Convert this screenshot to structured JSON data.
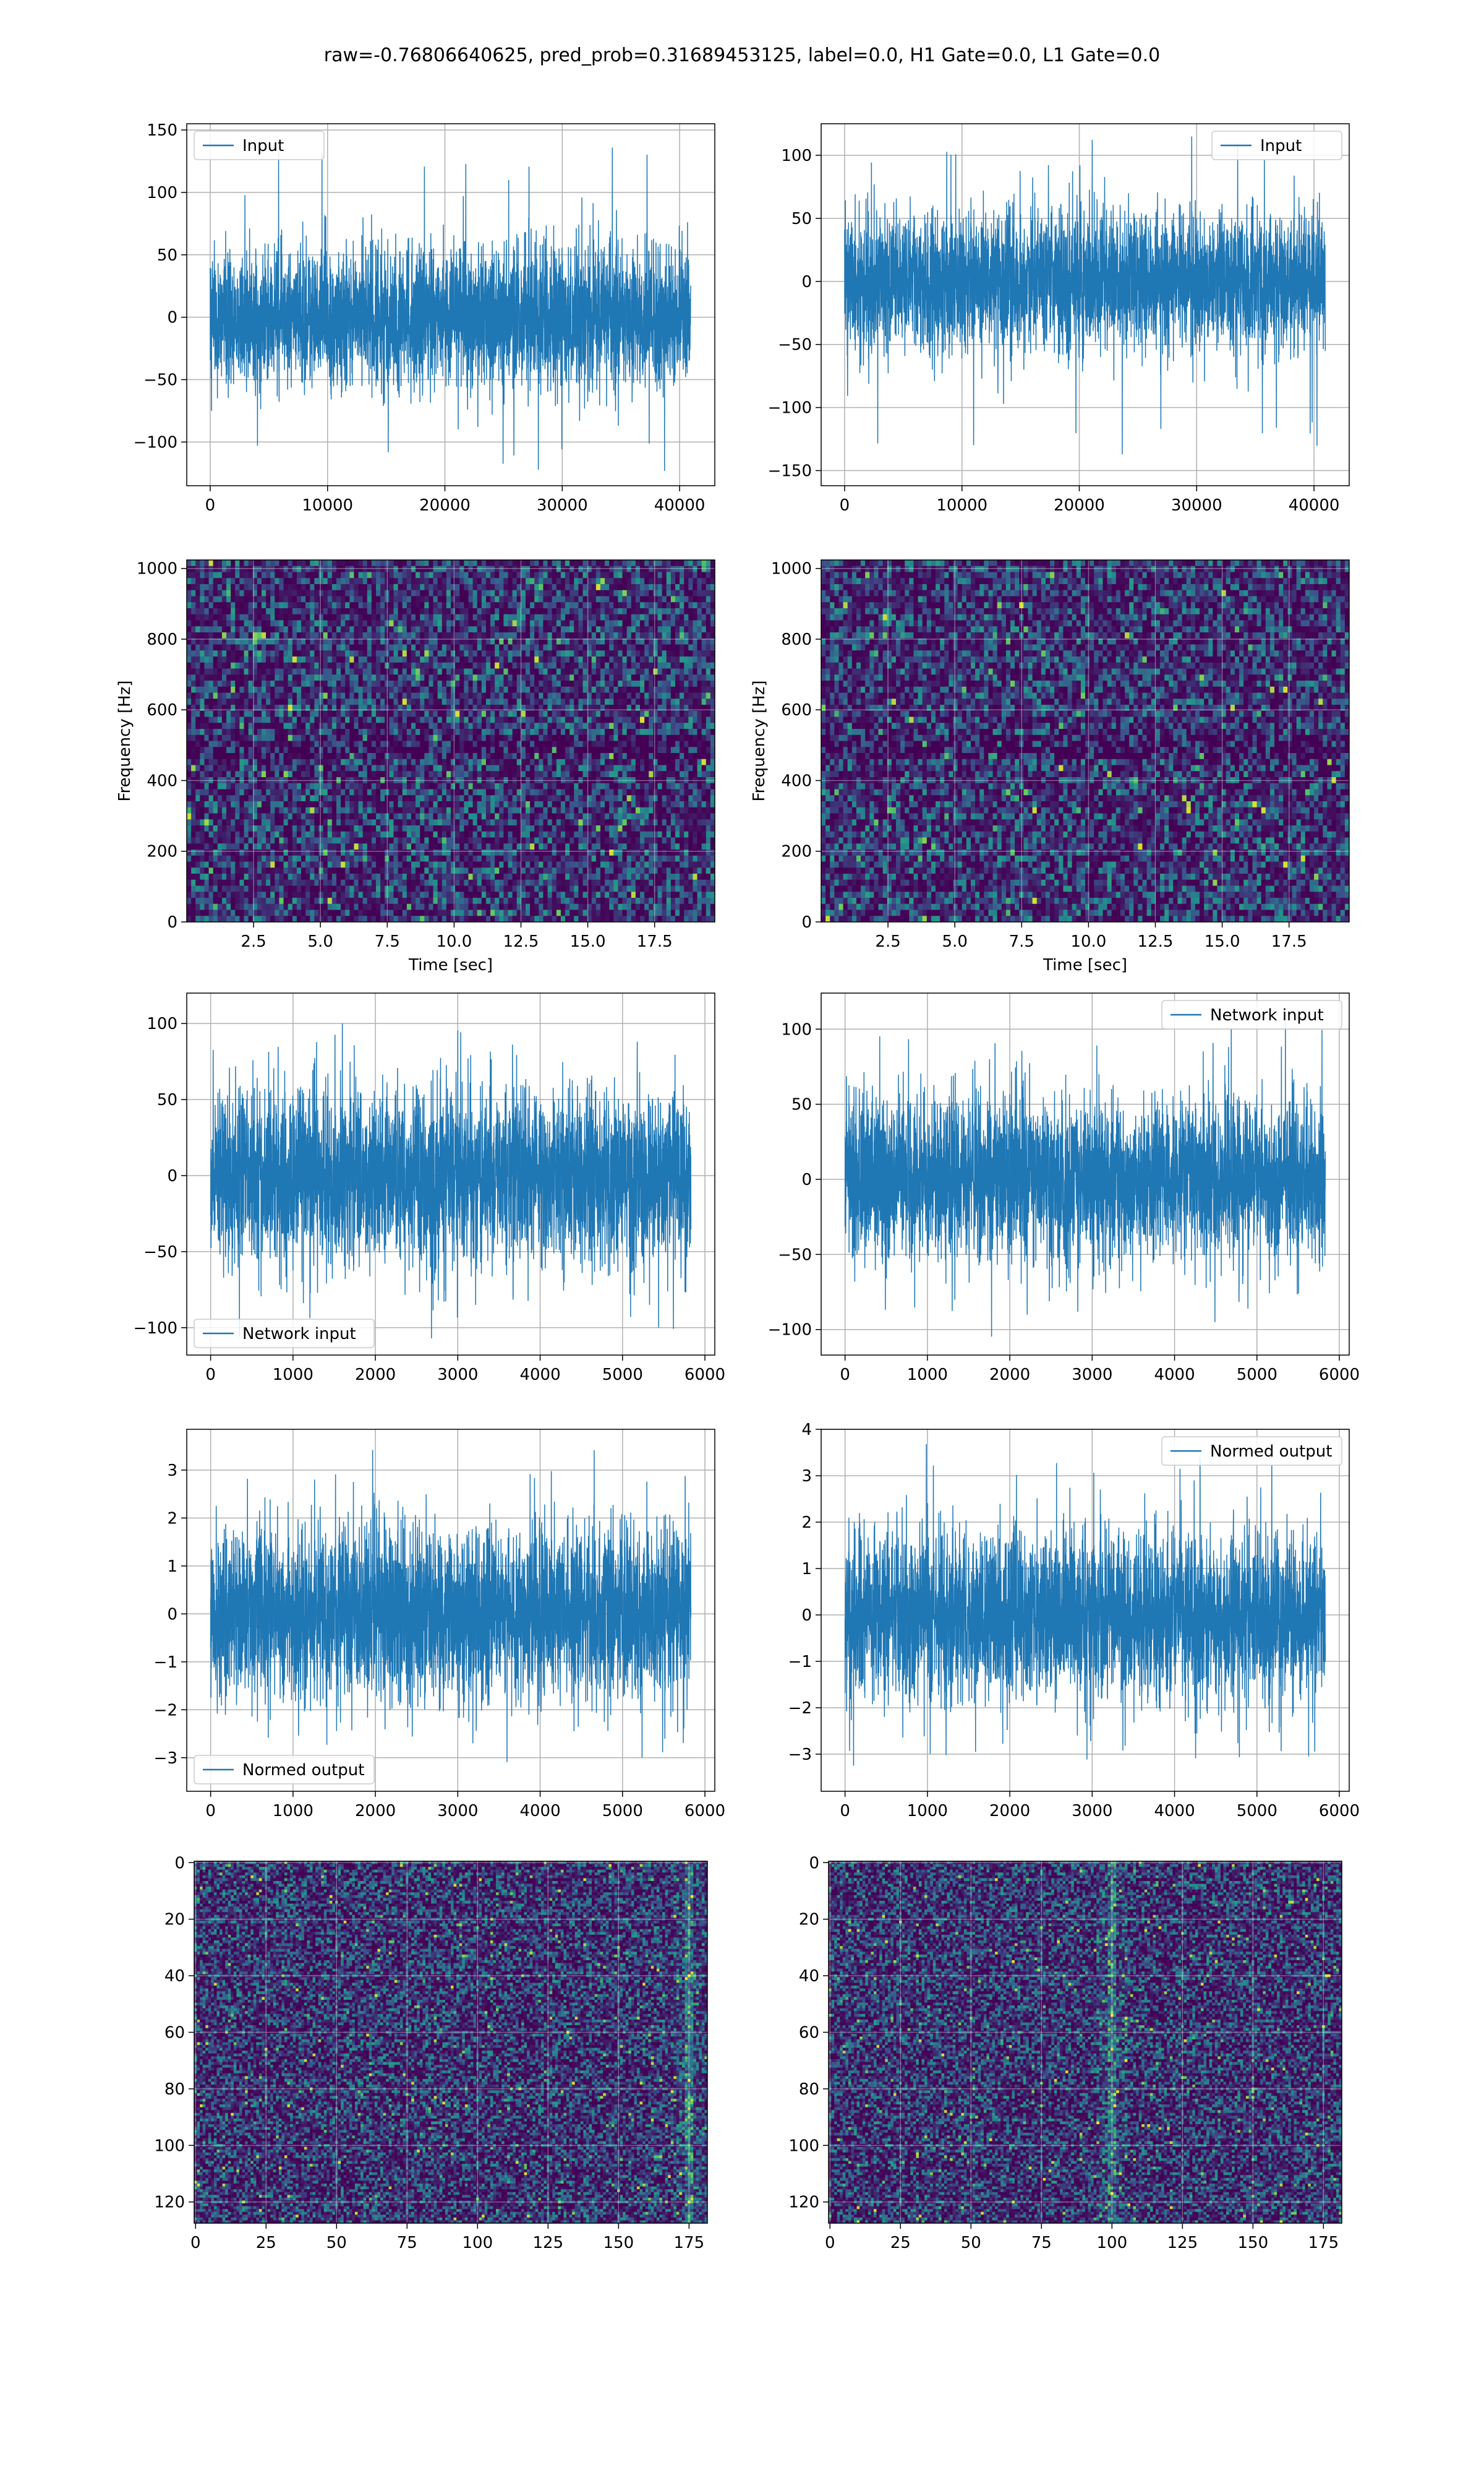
{
  "figure": {
    "title": "raw=-0.76806640625, pred_prob=0.31689453125, label=0.0, H1 Gate=0.0, L1 Gate=0.0"
  },
  "colors": {
    "series": "#1f77b4",
    "grid": "#b0b0b0",
    "viridis_dark": "#440154",
    "viridis_mid": "#3b528b",
    "viridis_teal": "#21918c",
    "viridis_green": "#5ec962",
    "viridis_yellow": "#fde725"
  },
  "chart_data": [
    {
      "id": "input-h1",
      "type": "line",
      "row": 0,
      "col": 0,
      "series": [
        {
          "name": "Input",
          "signal": "noise",
          "x_max": 40960,
          "std": 28,
          "peak_max": 140,
          "peak_min": -130
        }
      ],
      "xlim": [
        -2000,
        43000
      ],
      "ylim": [
        -135,
        155
      ],
      "xticks": [
        0,
        10000,
        20000,
        30000,
        40000
      ],
      "yticks": [
        -100,
        -50,
        0,
        50,
        100,
        150
      ],
      "legend": "upper left",
      "grid": true,
      "xlabel": "",
      "ylabel": ""
    },
    {
      "id": "input-l1",
      "type": "line",
      "row": 0,
      "col": 1,
      "series": [
        {
          "name": "Input",
          "signal": "noise",
          "x_max": 40960,
          "std": 27,
          "peak_max": 120,
          "peak_min": -148
        }
      ],
      "xlim": [
        -2000,
        43000
      ],
      "ylim": [
        -162,
        125
      ],
      "xticks": [
        0,
        10000,
        20000,
        30000,
        40000
      ],
      "yticks": [
        -150,
        -100,
        -50,
        0,
        50,
        100
      ],
      "legend": "upper right",
      "grid": true,
      "xlabel": "",
      "ylabel": ""
    },
    {
      "id": "spectrogram-h1",
      "type": "heatmap",
      "row": 1,
      "col": 0,
      "xlim": [
        0,
        19.75
      ],
      "ylim": [
        0,
        1024
      ],
      "xticks": [
        2.5,
        5.0,
        7.5,
        10.0,
        12.5,
        15.0,
        17.5
      ],
      "yticks": [
        0,
        200,
        400,
        600,
        800,
        1000
      ],
      "xlabel": "Time [sec]",
      "ylabel": "Frequency [Hz]",
      "colormap": "viridis",
      "grid": true,
      "dark_band_hz": [
        480,
        520
      ],
      "cells": [
        120,
        60
      ]
    },
    {
      "id": "spectrogram-l1",
      "type": "heatmap",
      "row": 1,
      "col": 1,
      "xlim": [
        0,
        19.75
      ],
      "ylim": [
        0,
        1024
      ],
      "xticks": [
        2.5,
        5.0,
        7.5,
        10.0,
        12.5,
        15.0,
        17.5
      ],
      "yticks": [
        0,
        200,
        400,
        600,
        800,
        1000
      ],
      "xlabel": "Time [sec]",
      "ylabel": "Frequency [Hz]",
      "colormap": "viridis",
      "grid": true,
      "dark_band_hz": [
        480,
        520
      ],
      "cells": [
        120,
        60
      ]
    },
    {
      "id": "network-input-h1",
      "type": "line",
      "row": 2,
      "col": 0,
      "series": [
        {
          "name": "Network input",
          "signal": "noise",
          "x_max": 5830,
          "std": 28,
          "peak_max": 100,
          "peak_min": -107
        }
      ],
      "xlim": [
        -290,
        6120
      ],
      "ylim": [
        -118,
        120
      ],
      "xticks": [
        0,
        1000,
        2000,
        3000,
        4000,
        5000,
        6000
      ],
      "yticks": [
        -100,
        -50,
        0,
        50,
        100
      ],
      "legend": "lower left",
      "grid": true,
      "xlabel": "",
      "ylabel": ""
    },
    {
      "id": "network-input-l1",
      "type": "line",
      "row": 2,
      "col": 1,
      "series": [
        {
          "name": "Network input",
          "signal": "noise",
          "x_max": 5830,
          "std": 27,
          "peak_max": 105,
          "peak_min": -107
        }
      ],
      "xlim": [
        -290,
        6120
      ],
      "ylim": [
        -117,
        124
      ],
      "xticks": [
        0,
        1000,
        2000,
        3000,
        4000,
        5000,
        6000
      ],
      "yticks": [
        -100,
        -50,
        0,
        50,
        100
      ],
      "legend": "upper right",
      "grid": true,
      "xlabel": "",
      "ylabel": ""
    },
    {
      "id": "normed-output-h1",
      "type": "line",
      "row": 3,
      "col": 0,
      "series": [
        {
          "name": "Normed output",
          "signal": "noise",
          "x_max": 5830,
          "std": 0.9,
          "peak_max": 3.5,
          "peak_min": -3.4
        }
      ],
      "xlim": [
        -290,
        6120
      ],
      "ylim": [
        -3.7,
        3.85
      ],
      "xticks": [
        0,
        1000,
        2000,
        3000,
        4000,
        5000,
        6000
      ],
      "yticks": [
        -3,
        -2,
        -1,
        0,
        1,
        2,
        3
      ],
      "legend": "lower left",
      "grid": true,
      "xlabel": "",
      "ylabel": ""
    },
    {
      "id": "normed-output-l1",
      "type": "line",
      "row": 3,
      "col": 1,
      "series": [
        {
          "name": "Normed output",
          "signal": "noise",
          "x_max": 5830,
          "std": 0.9,
          "peak_max": 3.7,
          "peak_min": -3.3
        }
      ],
      "xlim": [
        -290,
        6120
      ],
      "ylim": [
        -3.8,
        4.0
      ],
      "xticks": [
        0,
        1000,
        2000,
        3000,
        4000,
        5000,
        6000
      ],
      "yticks": [
        -3,
        -2,
        -1,
        0,
        1,
        2,
        3,
        4
      ],
      "legend": "upper right",
      "grid": true,
      "xlabel": "",
      "ylabel": ""
    },
    {
      "id": "network-image-h1",
      "type": "heatmap",
      "row": 4,
      "col": 0,
      "xlim": [
        -0.5,
        181.5
      ],
      "ylim": [
        127.5,
        -0.5
      ],
      "xticks": [
        0,
        25,
        50,
        75,
        100,
        125,
        150,
        175
      ],
      "yticks": [
        0,
        20,
        40,
        60,
        80,
        100,
        120
      ],
      "colormap": "viridis",
      "grid": true,
      "bright_column_at": 175,
      "cells": [
        182,
        128
      ]
    },
    {
      "id": "network-image-l1",
      "type": "heatmap",
      "row": 4,
      "col": 1,
      "xlim": [
        -0.5,
        181.5
      ],
      "ylim": [
        127.5,
        -0.5
      ],
      "xticks": [
        0,
        25,
        50,
        75,
        100,
        125,
        150,
        175
      ],
      "yticks": [
        0,
        20,
        40,
        60,
        80,
        100,
        120
      ],
      "colormap": "viridis",
      "grid": true,
      "bright_column_at": 100,
      "cells": [
        182,
        128
      ]
    }
  ]
}
